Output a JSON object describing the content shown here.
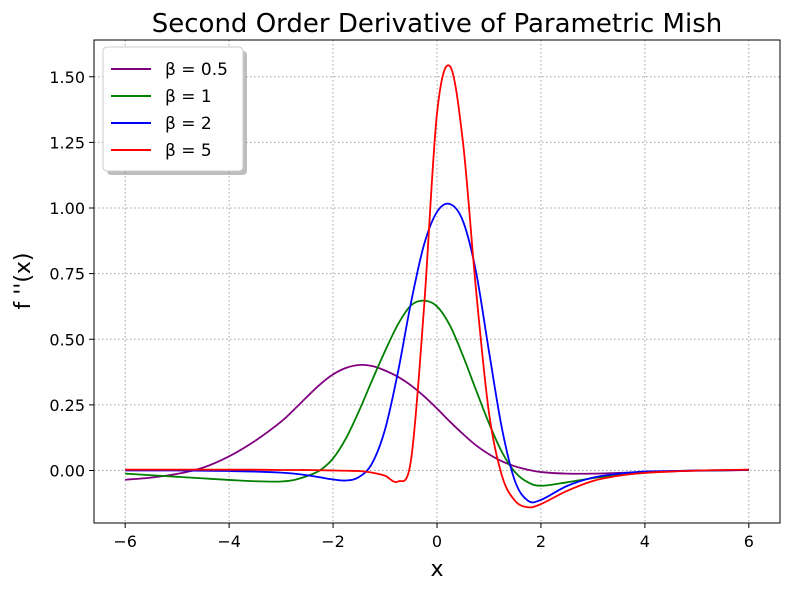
{
  "chart_data": {
    "type": "line",
    "title": "Second Order Derivative of Parametric Mish",
    "xlabel": "x",
    "ylabel": "f ''(x)",
    "xlim": [
      -6.6,
      6.6
    ],
    "ylim": [
      -0.2,
      1.64
    ],
    "xticks": [
      -6,
      -4,
      -2,
      0,
      2,
      4,
      6
    ],
    "xtick_labels": [
      "−6",
      "−4",
      "−2",
      "0",
      "2",
      "4",
      "6"
    ],
    "yticks": [
      0.0,
      0.25,
      0.5,
      0.75,
      1.0,
      1.25,
      1.5
    ],
    "ytick_labels": [
      "0.00",
      "0.25",
      "0.50",
      "0.75",
      "1.00",
      "1.25",
      "1.50"
    ],
    "grid": true,
    "legend_position": "top-left",
    "x": [
      -6.0,
      -5.5,
      -5.0,
      -4.5,
      -4.0,
      -3.5,
      -3.0,
      -2.75,
      -2.5,
      -2.25,
      -2.0,
      -1.75,
      -1.5,
      -1.25,
      -1.0,
      -0.75,
      -0.5,
      -0.25,
      0.0,
      0.25,
      0.5,
      0.75,
      1.0,
      1.25,
      1.5,
      1.75,
      2.0,
      2.5,
      3.0,
      3.5,
      4.0,
      4.5,
      5.0,
      5.5,
      6.0
    ],
    "series": [
      {
        "name": "β = 0.5",
        "color": "#800080",
        "values": [
          -0.035,
          -0.027,
          -0.013,
          0.011,
          0.054,
          0.113,
          0.186,
          0.232,
          0.281,
          0.328,
          0.366,
          0.391,
          0.402,
          0.398,
          0.381,
          0.357,
          0.324,
          0.283,
          0.236,
          0.186,
          0.139,
          0.096,
          0.062,
          0.035,
          0.016,
          0.003,
          -0.006,
          -0.012,
          -0.012,
          -0.009,
          -0.006,
          -0.003,
          -0.001,
          0.0,
          0.002
        ]
      },
      {
        "name": "β = 1",
        "color": "#008000",
        "values": [
          -0.012,
          -0.018,
          -0.024,
          -0.03,
          -0.036,
          -0.041,
          -0.042,
          -0.036,
          -0.021,
          0.001,
          0.046,
          0.123,
          0.227,
          0.343,
          0.455,
          0.557,
          0.629,
          0.647,
          0.625,
          0.552,
          0.437,
          0.307,
          0.18,
          0.07,
          -0.006,
          -0.045,
          -0.058,
          -0.045,
          -0.029,
          -0.017,
          -0.009,
          -0.003,
          0.0,
          0.001,
          0.002
        ]
      },
      {
        "name": "β = 2",
        "color": "#0000ff",
        "values": [
          0.0,
          0.0,
          0.0,
          -0.001,
          -0.002,
          -0.004,
          -0.008,
          -0.012,
          -0.018,
          -0.026,
          -0.034,
          -0.038,
          -0.025,
          0.027,
          0.156,
          0.376,
          0.64,
          0.86,
          0.985,
          1.015,
          0.95,
          0.758,
          0.454,
          0.16,
          -0.04,
          -0.115,
          -0.112,
          -0.059,
          -0.027,
          -0.012,
          -0.004,
          -0.002,
          0.0,
          0.001,
          0.002
        ]
      },
      {
        "name": "β = 5",
        "color": "#ff0000",
        "values": [
          0.003,
          0.003,
          0.003,
          0.003,
          0.003,
          0.003,
          0.002,
          0.002,
          0.002,
          0.001,
          0.0,
          -0.001,
          -0.002,
          -0.008,
          -0.02,
          -0.042,
          0.04,
          0.62,
          1.36,
          1.54,
          1.25,
          0.69,
          0.22,
          -0.02,
          -0.115,
          -0.14,
          -0.128,
          -0.078,
          -0.04,
          -0.02,
          -0.009,
          -0.004,
          0.0,
          0.002,
          0.003
        ]
      }
    ]
  }
}
